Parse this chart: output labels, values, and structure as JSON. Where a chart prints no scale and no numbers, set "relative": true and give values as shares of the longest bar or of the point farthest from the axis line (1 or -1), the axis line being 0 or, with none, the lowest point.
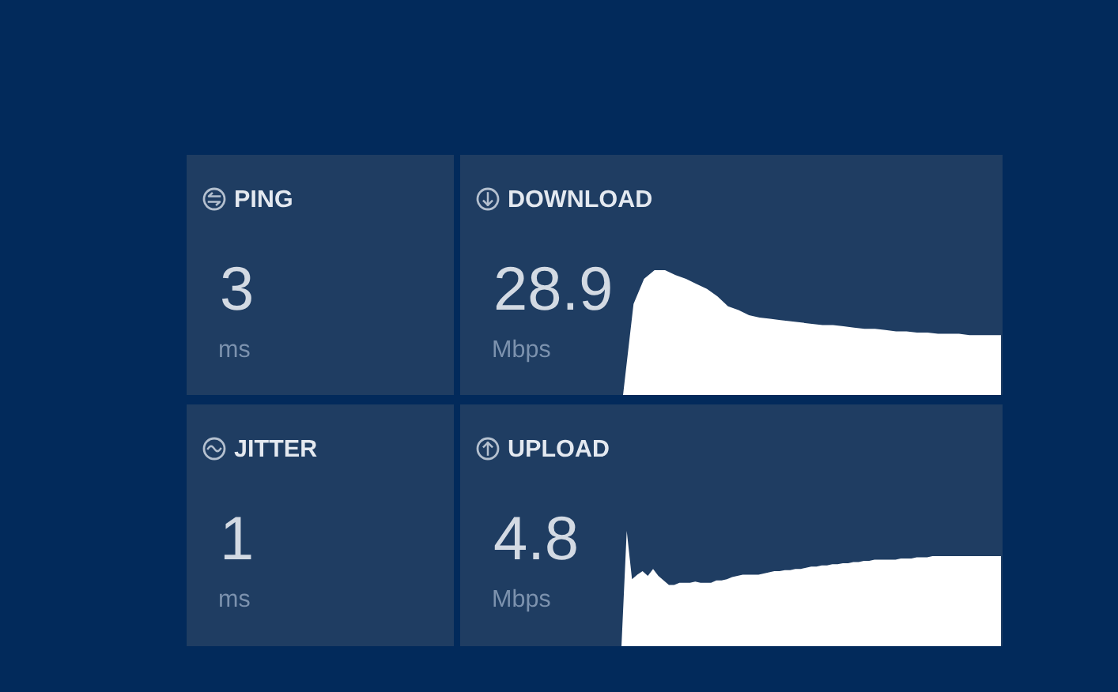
{
  "chart_data": [
    {
      "type": "other",
      "title": "PING",
      "annotations": [
        "3",
        "ms"
      ]
    },
    {
      "type": "area",
      "title": "DOWNLOAD",
      "annotations": [
        "28.9",
        "Mbps"
      ],
      "relative": true,
      "color": "#ffffff",
      "categories": [
        null,
        null,
        null,
        null,
        null,
        null,
        null,
        null,
        null,
        null,
        null,
        null,
        null,
        null,
        null,
        null,
        null,
        null,
        null,
        null,
        null,
        null,
        null,
        null,
        null,
        null,
        null,
        null,
        null,
        null,
        null,
        null,
        null,
        null,
        null,
        null,
        null
      ],
      "values": [
        0,
        0.73,
        0.93,
        1.0,
        1.0,
        0.96,
        0.93,
        0.89,
        0.85,
        0.79,
        0.71,
        0.68,
        0.64,
        0.62,
        0.61,
        0.6,
        0.59,
        0.58,
        0.57,
        0.56,
        0.56,
        0.55,
        0.54,
        0.53,
        0.53,
        0.52,
        0.51,
        0.51,
        0.5,
        0.5,
        0.49,
        0.49,
        0.49,
        0.48,
        0.48,
        0.48,
        0.48
      ]
    },
    {
      "type": "other",
      "title": "JITTER",
      "annotations": [
        "1",
        "ms"
      ]
    },
    {
      "type": "area",
      "title": "UPLOAD",
      "annotations": [
        "4.8",
        "Mbps"
      ],
      "relative": true,
      "color": "#ffffff",
      "categories": [
        null,
        null,
        null,
        null,
        null,
        null,
        null,
        null,
        null,
        null,
        null,
        null,
        null,
        null,
        null,
        null,
        null,
        null,
        null,
        null,
        null,
        null,
        null,
        null,
        null,
        null,
        null,
        null,
        null,
        null,
        null,
        null,
        null,
        null,
        null,
        null,
        null,
        null,
        null,
        null,
        null,
        null,
        null,
        null,
        null,
        null,
        null,
        null,
        null,
        null,
        null,
        null,
        null,
        null,
        null,
        null,
        null,
        null,
        null,
        null,
        null,
        null,
        null,
        null,
        null,
        null,
        null,
        null,
        null,
        null,
        null,
        null,
        null
      ],
      "values": [
        0,
        1.0,
        0.58,
        0.62,
        0.65,
        0.61,
        0.67,
        0.61,
        0.57,
        0.53,
        0.53,
        0.55,
        0.55,
        0.55,
        0.56,
        0.55,
        0.55,
        0.55,
        0.57,
        0.57,
        0.58,
        0.6,
        0.61,
        0.62,
        0.62,
        0.62,
        0.62,
        0.63,
        0.64,
        0.65,
        0.65,
        0.66,
        0.66,
        0.67,
        0.67,
        0.68,
        0.69,
        0.69,
        0.7,
        0.7,
        0.71,
        0.71,
        0.72,
        0.72,
        0.73,
        0.73,
        0.74,
        0.74,
        0.75,
        0.75,
        0.75,
        0.75,
        0.75,
        0.76,
        0.76,
        0.76,
        0.77,
        0.77,
        0.77,
        0.78,
        0.78,
        0.78,
        0.78,
        0.78,
        0.78,
        0.78,
        0.78,
        0.78,
        0.78,
        0.78,
        0.78,
        0.78,
        0.78
      ]
    }
  ]
}
